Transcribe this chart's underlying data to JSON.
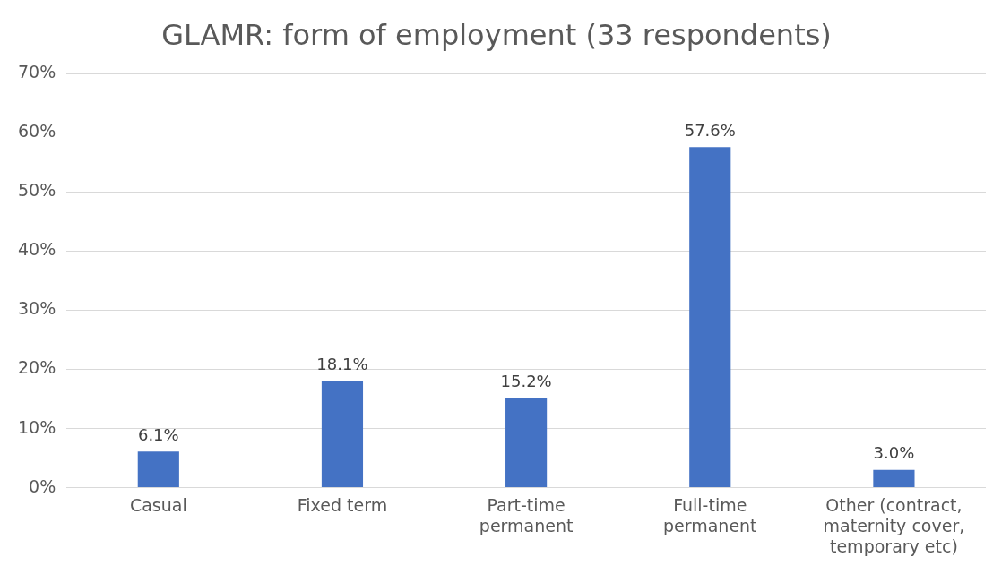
{
  "chart_data": {
    "type": "bar",
    "title": "GLAMR: form of employment (33 respondents)",
    "categories": [
      "Casual",
      "Fixed term",
      "Part-time permanent",
      "Full-time permanent",
      "Other (contract, maternity cover, temporary etc)"
    ],
    "values": [
      6.1,
      18.1,
      15.2,
      57.6,
      3.0
    ],
    "value_labels": [
      "6.1%",
      "18.1%",
      "15.2%",
      "57.6%",
      "3.0%"
    ],
    "color": "#4472c4",
    "ylim": [
      0,
      70
    ],
    "yticks": [
      {
        "value": 0,
        "label": "0%"
      },
      {
        "value": 10,
        "label": "10%"
      },
      {
        "value": 20,
        "label": "20%"
      },
      {
        "value": 30,
        "label": "30%"
      },
      {
        "value": 40,
        "label": "40%"
      },
      {
        "value": 50,
        "label": "50%"
      },
      {
        "value": 60,
        "label": "60%"
      },
      {
        "value": 70,
        "label": "70%"
      }
    ],
    "grid": "y",
    "legend": false
  }
}
